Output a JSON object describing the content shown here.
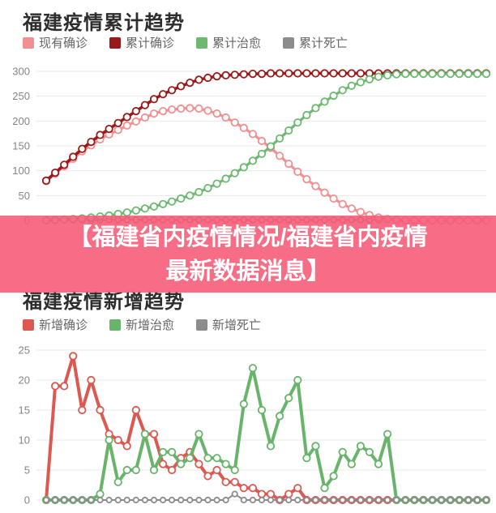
{
  "overlay": {
    "line1": "【福建省内疫情情况/福建省内疫情",
    "line2": "最新数据消息】",
    "bg_color": "#f65a76",
    "text_color": "#ffffff"
  },
  "chart_data": [
    {
      "type": "line",
      "title": "福建疫情累计趋势",
      "xlabel": "",
      "ylabel": "",
      "ylim": [
        0,
        300
      ],
      "yticks": [
        0,
        50,
        100,
        150,
        200,
        250,
        300
      ],
      "x_count": 50,
      "grid": true,
      "legend_position": "top-left",
      "series": [
        {
          "name": "现有确诊",
          "color": "#f19090",
          "values": [
            79,
            94,
            109,
            124,
            139,
            151,
            163,
            173,
            182,
            191,
            199,
            207,
            215,
            220,
            223,
            225,
            226,
            225,
            221,
            215,
            207,
            197,
            186,
            174,
            160,
            146,
            130,
            114,
            98,
            83,
            69,
            56,
            44,
            33,
            24,
            17,
            11,
            6,
            3,
            1,
            0,
            0,
            0,
            0,
            0,
            0,
            0,
            0,
            0,
            0
          ]
        },
        {
          "name": "累计确诊",
          "color": "#9a1a1a",
          "values": [
            80,
            96,
            112,
            128,
            144,
            158,
            172,
            184,
            196,
            208,
            220,
            232,
            244,
            254,
            262,
            270,
            277,
            283,
            287,
            290,
            292,
            293,
            294,
            295,
            295,
            296,
            296,
            296,
            296,
            296,
            296,
            296,
            296,
            296,
            296,
            296,
            296,
            296,
            296,
            296,
            296,
            296,
            296,
            296,
            296,
            296,
            296,
            296,
            296,
            296
          ]
        },
        {
          "name": "累计治愈",
          "color": "#6cb96f",
          "values": [
            0,
            1,
            2,
            3,
            4,
            6,
            8,
            10,
            13,
            16,
            20,
            24,
            28,
            33,
            38,
            44,
            50,
            57,
            65,
            74,
            84,
            95,
            107,
            120,
            134,
            149,
            165,
            181,
            197,
            212,
            226,
            239,
            251,
            262,
            271,
            278,
            284,
            289,
            292,
            294,
            295,
            295,
            295,
            295,
            295,
            295,
            295,
            295,
            295,
            295
          ]
        },
        {
          "name": "累计死亡",
          "color": "#8c8c8c",
          "values": [
            1,
            1,
            1,
            1,
            1,
            1,
            1,
            1,
            1,
            1,
            1,
            1,
            1,
            1,
            1,
            1,
            1,
            1,
            1,
            1,
            1,
            1,
            1,
            1,
            1,
            1,
            1,
            1,
            1,
            1,
            1,
            1,
            1,
            1,
            1,
            1,
            1,
            1,
            1,
            1,
            1,
            1,
            1,
            1,
            1,
            1,
            1,
            1,
            1,
            1
          ]
        }
      ]
    },
    {
      "type": "line",
      "title": "福建疫情新增趋势",
      "xlabel": "",
      "ylabel": "",
      "ylim": [
        0,
        25
      ],
      "yticks": [
        0,
        5,
        10,
        15,
        20,
        25
      ],
      "x_count": 50,
      "grid": true,
      "legend_position": "top-left",
      "series": [
        {
          "name": "新增确诊",
          "color": "#dd5850",
          "values": [
            0,
            19,
            19,
            24,
            15,
            20,
            15,
            11,
            10,
            9,
            15,
            11,
            11,
            6,
            5,
            7,
            8,
            6,
            4,
            5,
            3,
            3,
            2,
            2,
            1,
            1,
            0,
            1,
            2,
            0,
            0,
            0,
            0,
            0,
            0,
            0,
            0,
            0,
            0,
            0,
            0,
            0,
            0,
            0,
            0,
            0,
            0,
            0,
            0,
            0
          ]
        },
        {
          "name": "新增治愈",
          "color": "#67b46a",
          "values": [
            0,
            0,
            0,
            0,
            0,
            0,
            1,
            10,
            3,
            5,
            5,
            11,
            5,
            8,
            8,
            6,
            7,
            11,
            7,
            7,
            6,
            5,
            16,
            22,
            15,
            9,
            14,
            17,
            20,
            7,
            9,
            2,
            4,
            8,
            6,
            9,
            8,
            6,
            11,
            0,
            0,
            0,
            0,
            0,
            0,
            0,
            0,
            0,
            0,
            0
          ]
        },
        {
          "name": "新增死亡",
          "color": "#8c8c8c",
          "values": [
            0,
            0,
            0,
            0,
            0,
            0,
            0,
            0,
            0,
            0,
            0,
            0,
            0,
            0,
            0,
            0,
            0,
            0,
            0,
            0,
            0,
            1,
            0,
            0,
            0,
            0,
            0,
            0,
            0,
            0,
            0,
            0,
            0,
            0,
            0,
            0,
            0,
            0,
            0,
            0,
            0,
            0,
            0,
            0,
            0,
            0,
            0,
            0,
            0,
            0
          ]
        }
      ]
    }
  ]
}
